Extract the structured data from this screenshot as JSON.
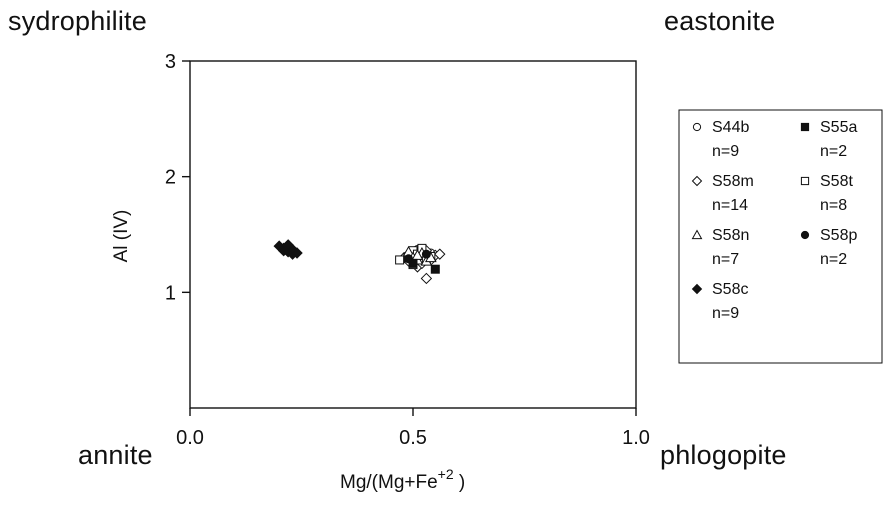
{
  "corners": {
    "top_left": "sydrophilite",
    "top_right": "eastonite",
    "bottom_left": "annite",
    "bottom_right": "phlogopite"
  },
  "chart_data": {
    "type": "scatter",
    "xlabel_main": "Mg/(Mg+Fe",
    "xlabel_sup": "+2",
    "xlabel_end": " )",
    "ylabel": "Al (IV)",
    "xlim": [
      0.0,
      1.0
    ],
    "ylim": [
      0,
      3
    ],
    "xticks": [
      "0.0",
      "0.5",
      "1.0"
    ],
    "xtick_values": [
      0.0,
      0.5,
      1.0
    ],
    "yticks": [
      "1",
      "2",
      "3"
    ],
    "ytick_values": [
      1,
      2,
      3
    ],
    "grid": false,
    "legend_position": "right",
    "series": [
      {
        "name": "S44b",
        "count": "n=9",
        "marker": "circle-open",
        "points": [
          [
            0.49,
            1.32
          ],
          [
            0.5,
            1.35
          ],
          [
            0.51,
            1.3
          ],
          [
            0.52,
            1.36
          ],
          [
            0.53,
            1.31
          ],
          [
            0.5,
            1.28
          ],
          [
            0.52,
            1.33
          ],
          [
            0.54,
            1.34
          ],
          [
            0.51,
            1.37
          ]
        ]
      },
      {
        "name": "S55a",
        "count": "n=2",
        "marker": "square-filled",
        "points": [
          [
            0.55,
            1.2
          ],
          [
            0.5,
            1.25
          ]
        ]
      },
      {
        "name": "S58m",
        "count": "n=14",
        "marker": "diamond-open",
        "points": [
          [
            0.48,
            1.3
          ],
          [
            0.49,
            1.33
          ],
          [
            0.5,
            1.31
          ],
          [
            0.51,
            1.35
          ],
          [
            0.52,
            1.3
          ],
          [
            0.53,
            1.12
          ],
          [
            0.54,
            1.28
          ],
          [
            0.55,
            1.32
          ],
          [
            0.56,
            1.33
          ],
          [
            0.5,
            1.26
          ],
          [
            0.51,
            1.22
          ],
          [
            0.53,
            1.36
          ],
          [
            0.49,
            1.27
          ],
          [
            0.52,
            1.25
          ]
        ]
      },
      {
        "name": "S58t",
        "count": "n=8",
        "marker": "square-open",
        "points": [
          [
            0.47,
            1.28
          ],
          [
            0.49,
            1.3
          ],
          [
            0.5,
            1.36
          ],
          [
            0.51,
            1.33
          ],
          [
            0.52,
            1.38
          ],
          [
            0.53,
            1.29
          ],
          [
            0.54,
            1.31
          ],
          [
            0.5,
            1.24
          ]
        ]
      },
      {
        "name": "S58n",
        "count": "n=7",
        "marker": "triangle-open",
        "points": [
          [
            0.49,
            1.35
          ],
          [
            0.5,
            1.3
          ],
          [
            0.51,
            1.28
          ],
          [
            0.52,
            1.34
          ],
          [
            0.53,
            1.27
          ],
          [
            0.54,
            1.3
          ],
          [
            0.51,
            1.32
          ]
        ]
      },
      {
        "name": "S58p",
        "count": "n=2",
        "marker": "circle-filled",
        "points": [
          [
            0.53,
            1.33
          ],
          [
            0.49,
            1.29
          ]
        ]
      },
      {
        "name": "S58c",
        "count": "n=9",
        "marker": "diamond-filled",
        "points": [
          [
            0.2,
            1.4
          ],
          [
            0.21,
            1.38
          ],
          [
            0.21,
            1.36
          ],
          [
            0.22,
            1.39
          ],
          [
            0.22,
            1.35
          ],
          [
            0.23,
            1.33
          ],
          [
            0.23,
            1.37
          ],
          [
            0.22,
            1.41
          ],
          [
            0.24,
            1.34
          ]
        ]
      }
    ]
  }
}
